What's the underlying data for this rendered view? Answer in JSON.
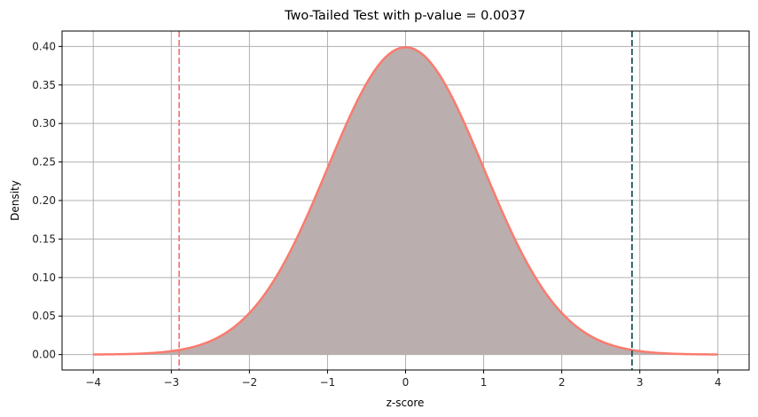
{
  "chart_data": {
    "type": "area",
    "title": "Two-Tailed Test with p-value = 0.0037",
    "xlabel": "z-score",
    "ylabel": "Density",
    "xlim": [
      -4.4,
      4.4
    ],
    "ylim": [
      -0.02,
      0.42
    ],
    "grid": true,
    "x_ticks": [
      -4,
      -3,
      -2,
      -1,
      0,
      1,
      2,
      3,
      4
    ],
    "x_tick_labels": [
      "−4",
      "−3",
      "−2",
      "−1",
      "0",
      "1",
      "2",
      "3",
      "4"
    ],
    "y_ticks": [
      0.0,
      0.05,
      0.1,
      0.15,
      0.2,
      0.25,
      0.3,
      0.35,
      0.4
    ],
    "y_tick_labels": [
      "0.00",
      "0.05",
      "0.10",
      "0.15",
      "0.20",
      "0.25",
      "0.30",
      "0.35",
      "0.40"
    ],
    "curve": {
      "distribution": "standard normal",
      "x_range": [
        -4,
        4
      ],
      "line_color": "#fa7b6e",
      "fill_color": "#baafae"
    },
    "critical_lines": [
      {
        "x": -2.9,
        "color": "#f47e78",
        "style": "dashed"
      },
      {
        "x": 2.9,
        "color": "#1f5a5c",
        "style": "dashed"
      }
    ]
  }
}
